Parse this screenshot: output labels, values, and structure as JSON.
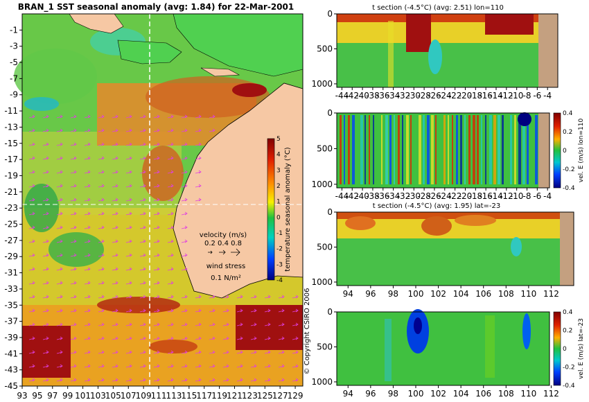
{
  "colors": {
    "ocean_warm": "#e08030",
    "land": "#f6c8a4",
    "land_right": "#c4a080",
    "vectors": "#e040e0"
  },
  "chart_data": [
    {
      "type": "heatmap",
      "title": "BRAN_1  SST seasonal anomaly (avg: 1.84) for 22-Mar-2001",
      "x_ticks": [
        "93",
        "95",
        "97",
        "99",
        "101",
        "103",
        "105",
        "107",
        "109",
        "111",
        "113",
        "115",
        "117",
        "119",
        "121",
        "123",
        "125",
        "127",
        "129"
      ],
      "y_ticks": [
        "-1",
        "-3",
        "-5",
        "-7",
        "-9",
        "-11",
        "-13",
        "-15",
        "-17",
        "-19",
        "-21",
        "-23",
        "-25",
        "-27",
        "-29",
        "-31",
        "-33",
        "-35",
        "-37",
        "-39",
        "-41",
        "-43",
        "-45"
      ],
      "xlim": [
        93,
        130
      ],
      "ylim": [
        -45,
        1
      ],
      "colorbar": {
        "label": "temperature seasonal anomaly (°C)",
        "ticks": [
          "5",
          "4",
          "3",
          "2",
          "1",
          "0",
          "-1",
          "-2",
          "-3",
          "-4"
        ],
        "range": [
          -4,
          5
        ]
      },
      "legend": {
        "velocity_label": "velocity (m/s)",
        "velocity_values": "0.2 0.4 0.8",
        "wind_label": "wind stress",
        "wind_value": "0.1 N/m²"
      },
      "crosshair": {
        "lon": 110,
        "lat": -23
      }
    },
    {
      "type": "heatmap",
      "title": "t section (-4.5°C) (avg: 2.51) lon=110",
      "x_ticks": [
        "-44",
        "-42",
        "-40",
        "-38",
        "-36",
        "-34",
        "-32",
        "-30",
        "-28",
        "-26",
        "-24",
        "-22",
        "-20",
        "-18",
        "-16",
        "-14",
        "-12",
        "-10",
        "-8",
        "-6",
        "-4"
      ],
      "xlim": [
        -45,
        -2
      ],
      "y_ticks": [
        "0",
        "500",
        "1000"
      ],
      "ylim": [
        1050,
        0
      ]
    },
    {
      "type": "heatmap",
      "title": "",
      "x_ticks": [
        "-44",
        "-42",
        "-40",
        "-38",
        "-36",
        "-34",
        "-32",
        "-30",
        "-28",
        "-26",
        "-24",
        "-22",
        "-20",
        "-18",
        "-16",
        "-14",
        "-12",
        "-10",
        "-8",
        "-6",
        "-4"
      ],
      "xlim": [
        -45,
        -2
      ],
      "y_ticks": [
        "0",
        "500",
        "1000"
      ],
      "ylim": [
        1050,
        0
      ],
      "colorbar": {
        "label": "vel. E (m/s) lon=110",
        "ticks": [
          "0.4",
          "0.2",
          "0",
          "-0.2",
          "-0.4"
        ],
        "range": [
          -0.4,
          0.4
        ]
      }
    },
    {
      "type": "heatmap",
      "title": "t section (-4.5°C) (avg: 1.95) lat=-23",
      "x_ticks": [
        "94",
        "96",
        "98",
        "100",
        "102",
        "104",
        "106",
        "108",
        "110",
        "112"
      ],
      "xlim": [
        93,
        114
      ],
      "y_ticks": [
        "0",
        "500",
        "1000"
      ],
      "ylim": [
        1050,
        0
      ]
    },
    {
      "type": "heatmap",
      "title": "",
      "x_ticks": [
        "94",
        "96",
        "98",
        "100",
        "102",
        "104",
        "106",
        "108",
        "110",
        "112"
      ],
      "xlim": [
        93,
        114
      ],
      "y_ticks": [
        "0",
        "500",
        "1000"
      ],
      "ylim": [
        1050,
        0
      ],
      "colorbar": {
        "label": "vel. E (m/s) lat=-23",
        "ticks": [
          "0.4",
          "0.2",
          "0",
          "-0.2",
          "-0.4"
        ],
        "range": [
          -0.4,
          0.4
        ]
      }
    }
  ],
  "copyright": "© Copyright CSIRO 2006"
}
